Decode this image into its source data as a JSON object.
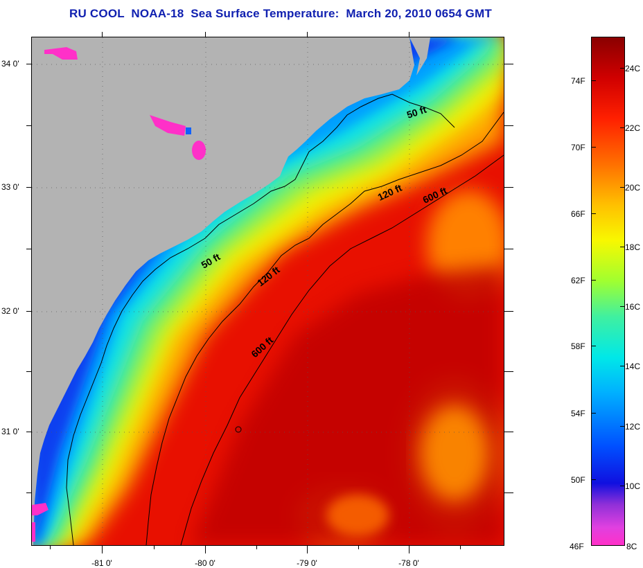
{
  "title": "RU COOL  NOAA-18  Sea Surface Temperature:  March 20, 2010 0654 GMT",
  "colors": {
    "land": "#b3b3b3",
    "title": "#1020b0",
    "isobath_line": "#000000"
  },
  "latitude_labels": [
    "34 0'",
    "33 0'",
    "32 0'",
    "31 0'"
  ],
  "longitude_labels": [
    "-81 0'",
    "-80 0'",
    "-79 0'",
    "-78 0'"
  ],
  "isobath_labels": {
    "north_50": "50 ft",
    "north_120": "120 ft",
    "north_600": "600 ft",
    "mid_50": "50 ft",
    "mid_120": "120 ft",
    "south_600": "600 ft"
  },
  "colorbar": {
    "fahrenheit_labels": [
      "74F",
      "70F",
      "66F",
      "62F",
      "58F",
      "54F",
      "50F",
      "46F"
    ],
    "celsius_labels": [
      "24C",
      "22C",
      "20C",
      "18C",
      "16C",
      "14C",
      "12C",
      "10C",
      "8C"
    ],
    "fahrenheit_values": [
      74,
      70,
      66,
      62,
      58,
      54,
      50,
      46
    ],
    "celsius_values": [
      24,
      22,
      20,
      18,
      16,
      14,
      12,
      10,
      8
    ]
  }
}
